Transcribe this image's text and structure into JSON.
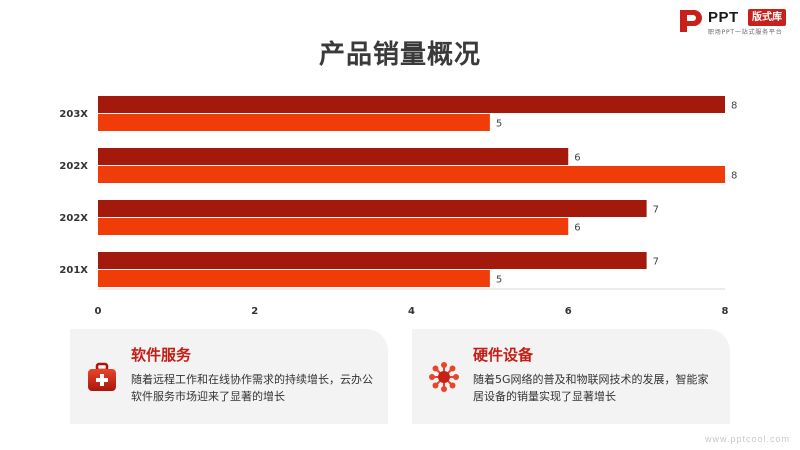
{
  "logo": {
    "brand": "PPT",
    "badge": "版式库",
    "tagline": "职场PPT一站式服务平台"
  },
  "title": "产品销量概况",
  "chart_data": {
    "type": "bar",
    "orientation": "horizontal",
    "categories": [
      "203X",
      "202X",
      "202X",
      "201X"
    ],
    "series": [
      {
        "values": [
          8,
          6,
          7,
          7
        ],
        "color": "#a31a0c"
      },
      {
        "values": [
          5,
          8,
          6,
          5
        ],
        "color": "#ef3c08"
      }
    ],
    "xlim": [
      0,
      8
    ],
    "xticks": [
      0,
      2,
      4,
      6,
      8
    ],
    "grid": false,
    "legend": "none",
    "data_labels": true
  },
  "cards": [
    {
      "title": "软件服务",
      "desc": "随着远程工作和在线协作需求的持续增长，云办公软件服务市场迎来了显著的增长",
      "icon": "medical-kit-icon"
    },
    {
      "title": "硬件设备",
      "desc": "随着5G网络的普及和物联网技术的发展，智能家居设备的销量实现了显著增长",
      "icon": "network-hub-icon"
    }
  ],
  "watermark": "www.pptcool.com"
}
